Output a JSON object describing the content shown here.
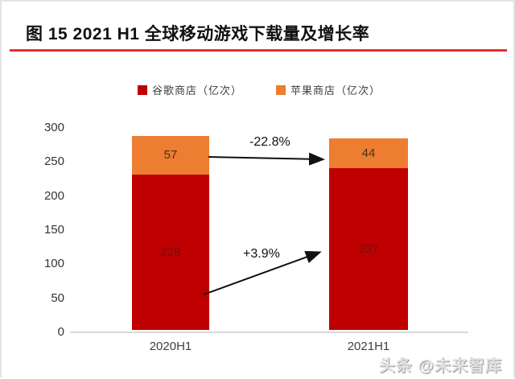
{
  "page": {
    "title": "图 15 2021 H1 全球移动游戏下载量及增长率",
    "watermark": "头条 @未来智库"
  },
  "legend": [
    {
      "label": "谷歌商店（亿次）",
      "color": "#c00000"
    },
    {
      "label": "苹果商店（亿次）",
      "color": "#ed7d31"
    }
  ],
  "chart_data": {
    "type": "bar",
    "stacked": true,
    "categories": [
      "2020H1",
      "2021H1"
    ],
    "series": [
      {
        "name": "谷歌商店（亿次）",
        "color": "#c00000",
        "values": [
          228,
          237
        ]
      },
      {
        "name": "苹果商店（亿次）",
        "color": "#ed7d31",
        "values": [
          57,
          44
        ]
      }
    ],
    "annotations": [
      {
        "label": "-22.8%",
        "applies_to": "苹果商店（亿次）"
      },
      {
        "label": "+3.9%",
        "applies_to": "谷歌商店（亿次）"
      }
    ],
    "ylim": [
      0,
      300
    ],
    "yticks": [
      0,
      50,
      100,
      150,
      200,
      250,
      300
    ],
    "grid": false,
    "legend_position": "top"
  }
}
